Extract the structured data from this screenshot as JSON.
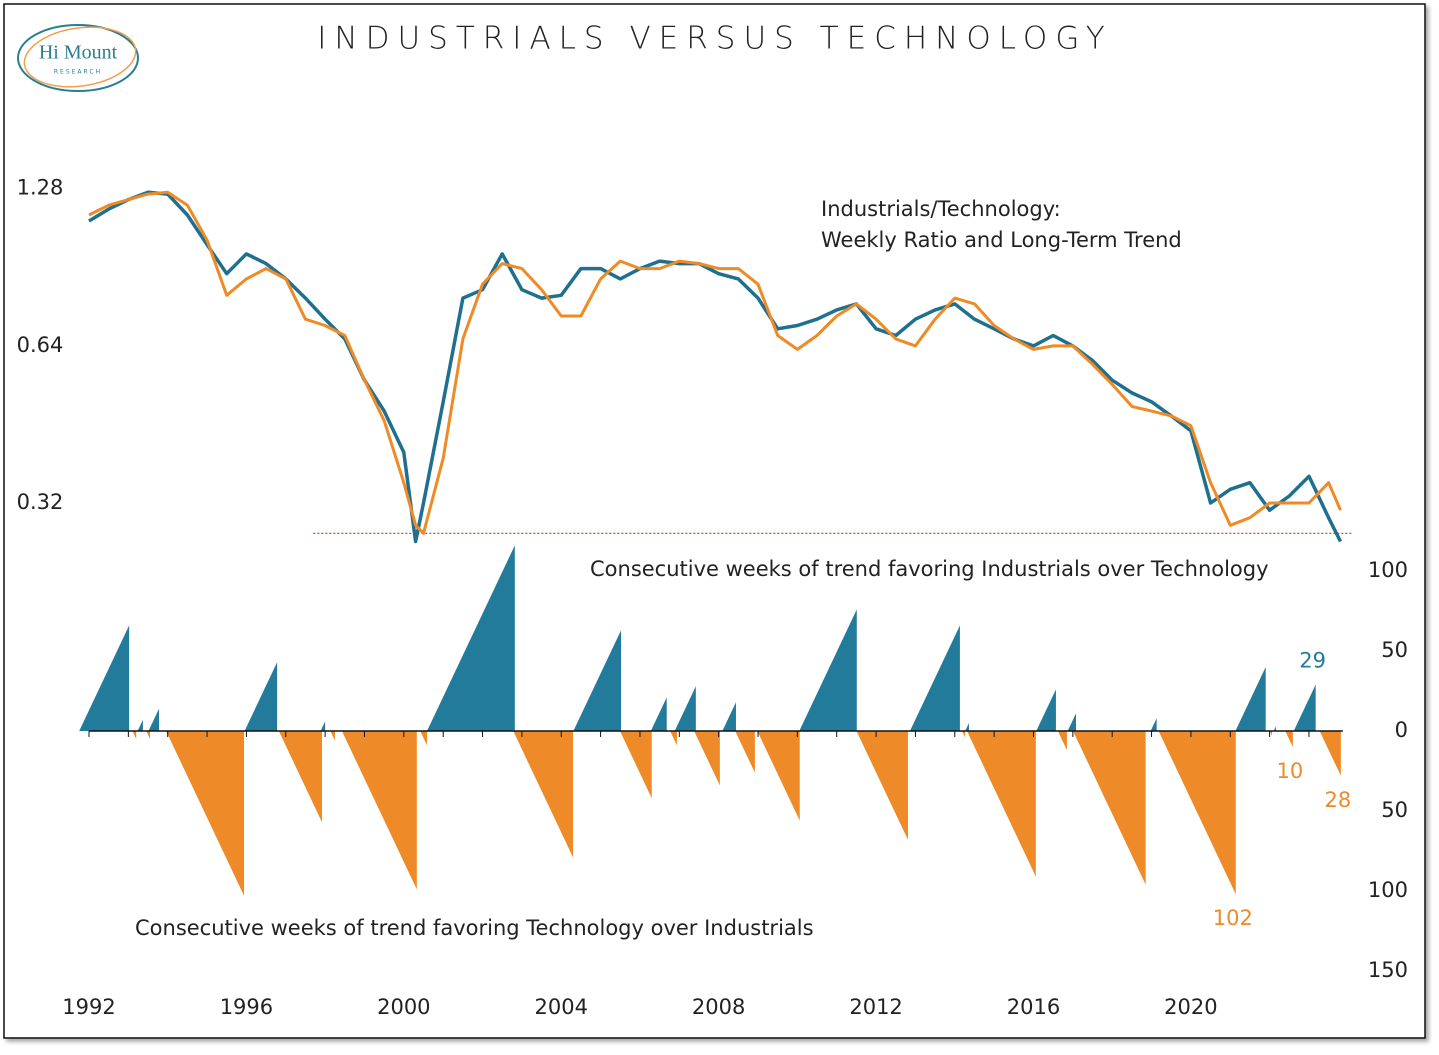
{
  "logo": {
    "name": "Hi Mount",
    "sub": "RESEARCH"
  },
  "chart_data": [
    {
      "type": "line",
      "title": "INDUSTRIALS VERSUS TECHNOLOGY",
      "annotations": [
        "Industrials/Technology:",
        "Weekly Ratio and Long-Term Trend"
      ],
      "log_scale": true,
      "grid": false,
      "xlim": [
        1992,
        2024.5
      ],
      "ylim": [
        0.25,
        1.39
      ],
      "yticks": [
        0.32,
        0.64,
        1.28
      ],
      "x": [
        1992,
        1992.5,
        1993,
        1993.5,
        1994,
        1994.5,
        1995,
        1995.5,
        1996,
        1996.5,
        1997,
        1997.5,
        1998,
        1998.5,
        1999,
        1999.5,
        2000,
        2000.3,
        2000.5,
        2001,
        2001.5,
        2002,
        2002.5,
        2003,
        2003.5,
        2004,
        2004.5,
        2005,
        2005.5,
        2006,
        2006.5,
        2007,
        2007.5,
        2008,
        2008.5,
        2009,
        2009.5,
        2010,
        2010.5,
        2011,
        2011.5,
        2012,
        2012.5,
        2013,
        2013.5,
        2014,
        2014.5,
        2015,
        2015.5,
        2016,
        2016.5,
        2017,
        2017.5,
        2018,
        2018.5,
        2019,
        2019.5,
        2020,
        2020.5,
        2021,
        2021.5,
        2022,
        2022.5,
        2023,
        2023.5,
        2023.8
      ],
      "series": [
        {
          "color": "#1f6f8f",
          "values": [
            1.11,
            1.17,
            1.22,
            1.26,
            1.25,
            1.14,
            1.0,
            0.88,
            0.96,
            0.92,
            0.86,
            0.79,
            0.72,
            0.66,
            0.55,
            0.48,
            0.4,
            0.27,
            0.32,
            0.5,
            0.79,
            0.82,
            0.96,
            0.82,
            0.79,
            0.8,
            0.9,
            0.9,
            0.86,
            0.9,
            0.93,
            0.92,
            0.92,
            0.88,
            0.86,
            0.79,
            0.69,
            0.7,
            0.72,
            0.75,
            0.77,
            0.69,
            0.67,
            0.72,
            0.75,
            0.77,
            0.72,
            0.69,
            0.66,
            0.64,
            0.67,
            0.64,
            0.6,
            0.55,
            0.52,
            0.5,
            0.47,
            0.44,
            0.32,
            0.34,
            0.35,
            0.31,
            0.33,
            0.36,
            0.3,
            0.27
          ]
        },
        {
          "color": "#f08a24",
          "values": [
            1.14,
            1.19,
            1.22,
            1.25,
            1.26,
            1.19,
            1.02,
            0.8,
            0.86,
            0.9,
            0.86,
            0.72,
            0.7,
            0.67,
            0.55,
            0.46,
            0.35,
            0.29,
            0.28,
            0.39,
            0.66,
            0.84,
            0.92,
            0.9,
            0.82,
            0.73,
            0.73,
            0.86,
            0.93,
            0.9,
            0.9,
            0.93,
            0.92,
            0.9,
            0.9,
            0.84,
            0.67,
            0.63,
            0.67,
            0.73,
            0.77,
            0.72,
            0.66,
            0.64,
            0.72,
            0.79,
            0.77,
            0.7,
            0.66,
            0.63,
            0.64,
            0.64,
            0.59,
            0.54,
            0.49,
            0.48,
            0.47,
            0.45,
            0.35,
            0.29,
            0.3,
            0.32,
            0.32,
            0.32,
            0.35,
            0.31
          ]
        }
      ],
      "hline": {
        "value": 0.28,
        "x": [
          1997.7,
          2024.1
        ],
        "color": "#c0392b"
      }
    },
    {
      "type": "streak",
      "annotations": [
        "Consecutive weeks of trend favoring Industrials over Technology",
        "Consecutive weeks of trend favoring Technology over Industrials"
      ],
      "colors": {
        "positive": "#237b9b",
        "negative": "#ee8a27"
      },
      "xlim": [
        1992,
        2024.5
      ],
      "ylim": [
        -150,
        116
      ],
      "xticks": [
        1992,
        1996,
        2000,
        2004,
        2008,
        2012,
        2016,
        2020
      ],
      "xticks_minor": [
        1993,
        1994,
        1995,
        1997,
        1998,
        1999,
        2001,
        2002,
        2003,
        2005,
        2006,
        2007,
        2009,
        2010,
        2011,
        2013,
        2014,
        2015,
        2017,
        2018,
        2019,
        2021,
        2022,
        2023
      ],
      "yticks": [
        100,
        50,
        0,
        {
          "value": -50,
          "label": "50"
        },
        {
          "value": -100,
          "label": "100"
        },
        {
          "value": -150,
          "label": "150"
        }
      ],
      "x": [
        1993.02,
        1993.2,
        1993.37,
        1993.55,
        1993.78,
        1995.94,
        1996.78,
        1997.92,
        1998.0,
        1998.25,
        2000.33,
        2000.59,
        2002.82,
        2004.3,
        2005.52,
        2006.3,
        2006.68,
        2006.94,
        2007.42,
        2008.03,
        2008.44,
        2008.92,
        2010.06,
        2011.51,
        2012.81,
        2014.13,
        2014.26,
        2014.36,
        2016.06,
        2016.57,
        2016.85,
        2017.08,
        2018.85,
        2019.13,
        2021.14,
        2021.9,
        2022.06,
        2022.16,
        2022.59,
        2023.17,
        2023.81
      ],
      "values": [
        66,
        -5,
        7,
        -5,
        14,
        -103,
        43,
        -57,
        6,
        -6,
        -99,
        -9,
        116,
        -79,
        63,
        -42,
        21,
        -9,
        28,
        -34,
        18,
        -26,
        -56,
        76,
        -68,
        66,
        -4,
        5,
        -91,
        26,
        -12,
        11,
        -96,
        8,
        -102,
        40,
        -3,
        3,
        -10,
        29,
        -28
      ],
      "value_labels": [
        null,
        null,
        null,
        null,
        null,
        null,
        null,
        null,
        null,
        null,
        null,
        null,
        null,
        null,
        null,
        null,
        null,
        null,
        null,
        null,
        null,
        null,
        null,
        null,
        null,
        null,
        null,
        null,
        null,
        null,
        null,
        null,
        null,
        null,
        "102",
        null,
        null,
        null,
        "10",
        "29",
        "28"
      ]
    }
  ]
}
